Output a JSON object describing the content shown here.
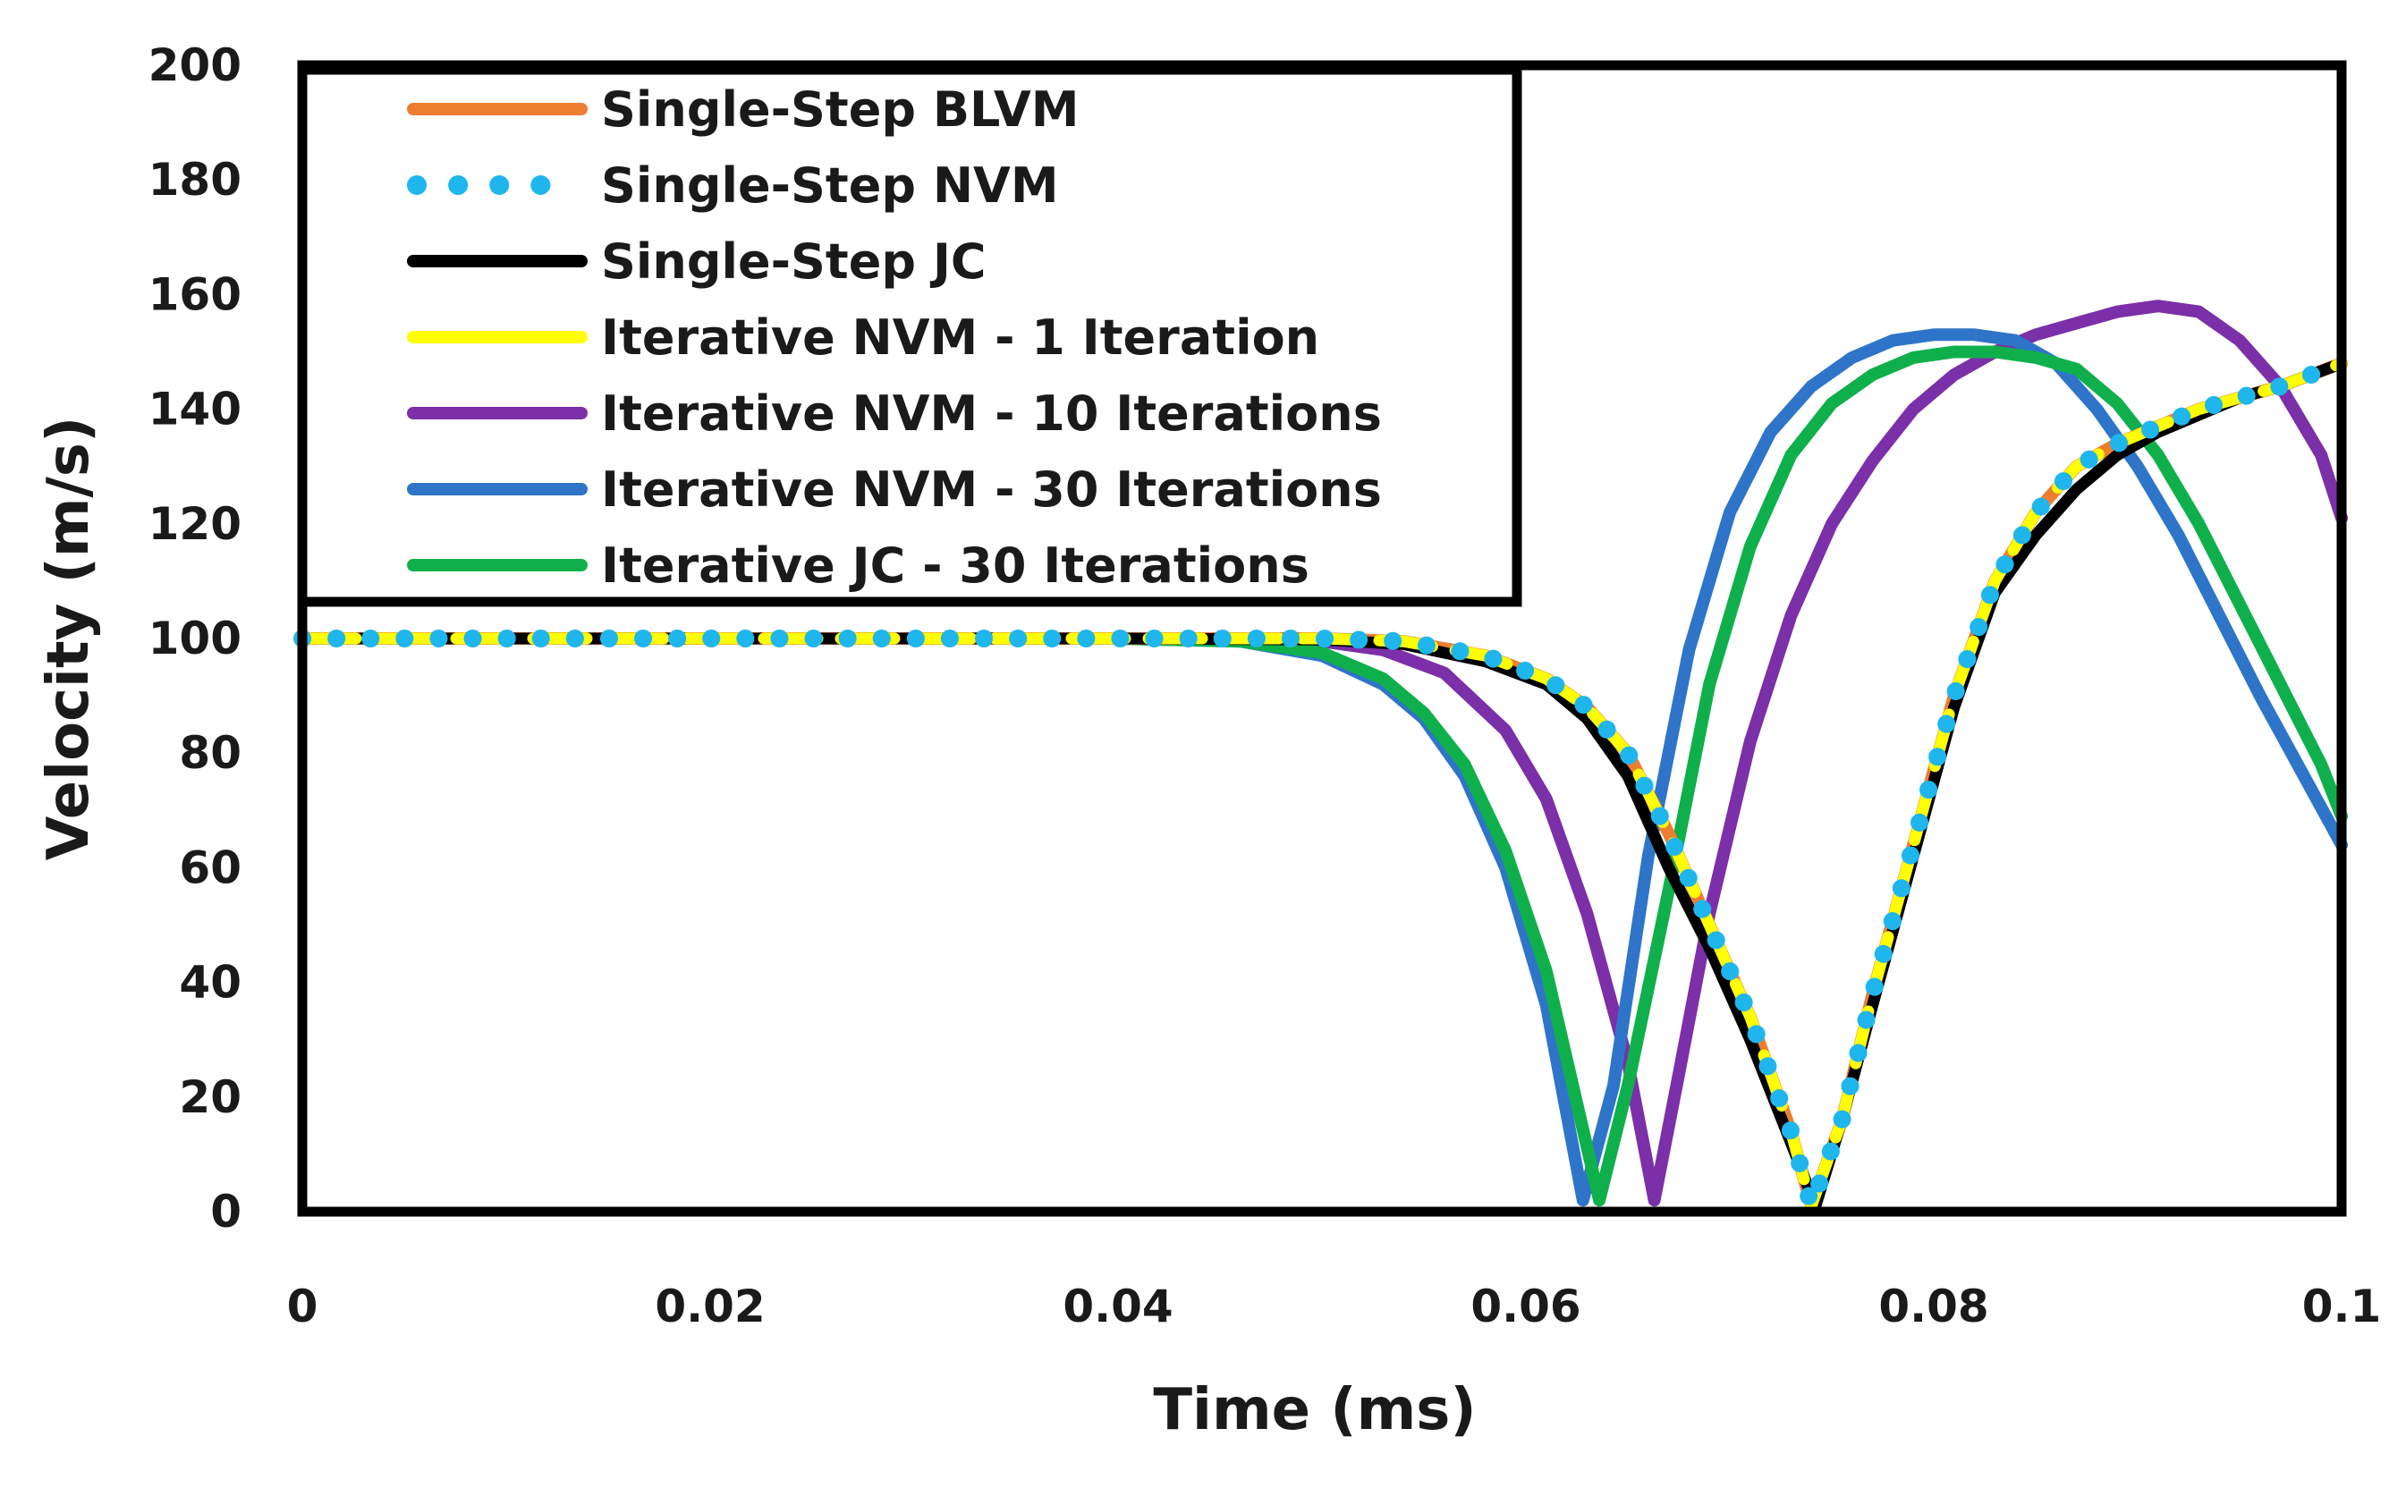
{
  "chart_data": {
    "type": "line",
    "title": "",
    "xlabel": "Time (ms)",
    "ylabel": "Velocity (m/s)",
    "xlim": [
      0,
      0.1
    ],
    "ylim": [
      0,
      200
    ],
    "x_ticks": [
      0,
      0.02,
      0.04,
      0.06,
      0.08,
      0.1
    ],
    "x_tick_labels": [
      "0",
      "0.02",
      "0.04",
      "0.06",
      "0.08",
      "0.1"
    ],
    "y_ticks": [
      0,
      20,
      40,
      60,
      80,
      100,
      120,
      140,
      160,
      180,
      200
    ],
    "y_tick_labels": [
      "0",
      "20",
      "40",
      "60",
      "80",
      "100",
      "120",
      "140",
      "160",
      "180",
      "200"
    ],
    "grid": false,
    "legend_position": "top-left",
    "series": [
      {
        "name": "Single-Step BLVM",
        "color": "#ED7D31",
        "style": "solid",
        "x": [
          0,
          0.04,
          0.05,
          0.054,
          0.058,
          0.061,
          0.063,
          0.065,
          0.067,
          0.069,
          0.071,
          0.073,
          0.074,
          0.0755,
          0.077,
          0.079,
          0.081,
          0.083,
          0.085,
          0.087,
          0.089,
          0.091,
          0.093,
          0.095,
          0.097,
          0.1
        ],
        "values": [
          100,
          100,
          100,
          99.5,
          97,
          93,
          88,
          80,
          66,
          50,
          34,
          14,
          1,
          16,
          38,
          64,
          90,
          110,
          122,
          130,
          134,
          137,
          140,
          142,
          144,
          148
        ]
      },
      {
        "name": "Single-Step NVM",
        "color": "#1FB6EE",
        "style": "dotted",
        "x": [
          0,
          0.04,
          0.05,
          0.054,
          0.058,
          0.061,
          0.063,
          0.065,
          0.067,
          0.069,
          0.071,
          0.073,
          0.074,
          0.0755,
          0.077,
          0.079,
          0.081,
          0.083,
          0.085,
          0.087,
          0.089,
          0.091,
          0.093,
          0.095,
          0.097,
          0.1
        ],
        "values": [
          100,
          100,
          100,
          99.5,
          97,
          93,
          88,
          80,
          66,
          50,
          34,
          14,
          1,
          16,
          38,
          64,
          90,
          110,
          122,
          130,
          134,
          137,
          140,
          142,
          144,
          148
        ]
      },
      {
        "name": "Single-Step JC",
        "color": "#000000",
        "style": "solid",
        "x": [
          0,
          0.04,
          0.05,
          0.054,
          0.058,
          0.061,
          0.063,
          0.065,
          0.067,
          0.069,
          0.071,
          0.073,
          0.0742,
          0.0755,
          0.077,
          0.079,
          0.081,
          0.083,
          0.085,
          0.087,
          0.089,
          0.091,
          0.093,
          0.095,
          0.097,
          0.1
        ],
        "values": [
          100,
          100,
          99.8,
          99,
          96,
          92,
          86,
          76,
          60,
          46,
          30,
          12,
          1,
          16,
          36,
          62,
          88,
          108,
          118,
          126,
          132,
          136,
          139,
          142,
          144,
          148
        ]
      },
      {
        "name": "Iterative NVM - 1 Iteration",
        "color": "#FFFF00",
        "style": "dashed",
        "x": [
          0,
          0.04,
          0.05,
          0.054,
          0.058,
          0.061,
          0.063,
          0.065,
          0.067,
          0.069,
          0.071,
          0.073,
          0.074,
          0.0755,
          0.077,
          0.079,
          0.081,
          0.083,
          0.085,
          0.087,
          0.089,
          0.091,
          0.093,
          0.095,
          0.097,
          0.1
        ],
        "values": [
          100,
          100,
          100,
          99.5,
          97,
          93,
          88,
          80,
          66,
          50,
          34,
          14,
          1,
          16,
          38,
          64,
          90,
          110,
          122,
          130,
          134,
          137,
          140,
          142,
          144,
          148
        ]
      },
      {
        "name": "Iterative NVM - 10 Iterations",
        "color": "#7B2FA8",
        "style": "solid",
        "x": [
          0,
          0.045,
          0.05,
          0.053,
          0.056,
          0.059,
          0.061,
          0.063,
          0.065,
          0.0663,
          0.0675,
          0.069,
          0.071,
          0.073,
          0.075,
          0.077,
          0.079,
          0.081,
          0.083,
          0.085,
          0.087,
          0.089,
          0.091,
          0.093,
          0.095,
          0.097,
          0.099,
          0.1
        ],
        "values": [
          100,
          100,
          99.5,
          98,
          94,
          84,
          72,
          52,
          26,
          2,
          24,
          52,
          82,
          104,
          120,
          131,
          140,
          146,
          150,
          153,
          155,
          157,
          158,
          157,
          152,
          144,
          132,
          121
        ]
      },
      {
        "name": "Iterative NVM - 30 Iterations",
        "color": "#2E75C9",
        "style": "solid",
        "x": [
          0,
          0.04,
          0.046,
          0.05,
          0.053,
          0.055,
          0.057,
          0.059,
          0.061,
          0.0628,
          0.0643,
          0.066,
          0.068,
          0.07,
          0.072,
          0.074,
          0.076,
          0.078,
          0.08,
          0.082,
          0.084,
          0.086,
          0.088,
          0.09,
          0.092,
          0.094,
          0.096,
          0.098,
          0.1
        ],
        "values": [
          100,
          100,
          99.5,
          97,
          92,
          86,
          76,
          60,
          36,
          2,
          22,
          62,
          98,
          122,
          136,
          144,
          149,
          152,
          153,
          153,
          152,
          148,
          140,
          130,
          118,
          104,
          90,
          77,
          64
        ]
      },
      {
        "name": "Iterative JC - 30 Iterations",
        "color": "#0FB04C",
        "style": "solid",
        "x": [
          0,
          0.04,
          0.046,
          0.05,
          0.053,
          0.055,
          0.057,
          0.059,
          0.061,
          0.0636,
          0.065,
          0.067,
          0.069,
          0.071,
          0.073,
          0.075,
          0.077,
          0.079,
          0.081,
          0.083,
          0.085,
          0.087,
          0.089,
          0.091,
          0.093,
          0.095,
          0.097,
          0.099,
          0.1
        ],
        "values": [
          100,
          100,
          99.5,
          97.5,
          93,
          87,
          78,
          63,
          42,
          2,
          22,
          56,
          92,
          116,
          132,
          141,
          146,
          149,
          150,
          150,
          149,
          147,
          141,
          132,
          120,
          106,
          92,
          78,
          69
        ]
      }
    ]
  }
}
